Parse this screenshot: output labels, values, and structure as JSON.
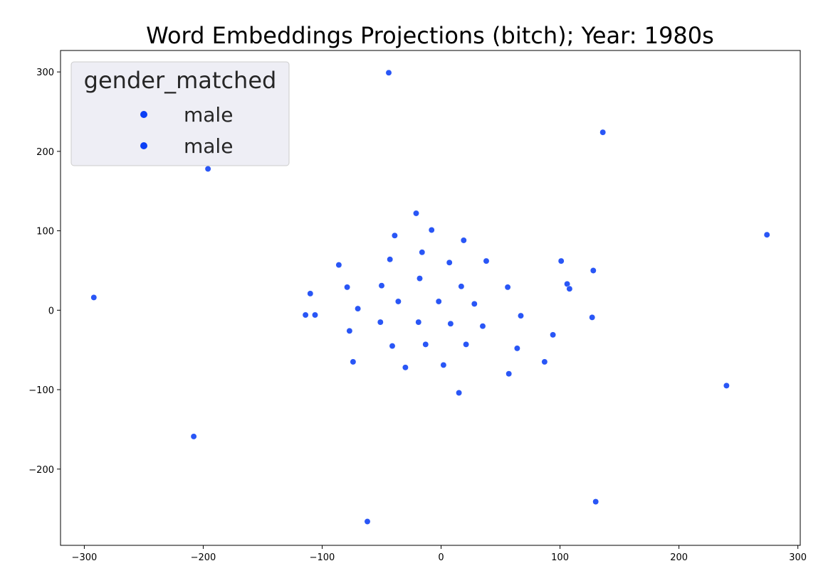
{
  "chart_data": {
    "type": "scatter",
    "title": "Word Embeddings Projections (bitch); Year: 1980s",
    "xlabel": "",
    "ylabel": "",
    "xlim": [
      -320,
      302
    ],
    "ylim": [
      -296,
      327
    ],
    "xticks": [
      -300,
      -200,
      -100,
      0,
      100,
      200,
      300
    ],
    "yticks": [
      -200,
      -100,
      0,
      100,
      200,
      300
    ],
    "xtick_labels": [
      "−300",
      "−200",
      "−100",
      "0",
      "100",
      "200",
      "300"
    ],
    "ytick_labels": [
      "−200",
      "−100",
      "0",
      "100",
      "200",
      "300"
    ],
    "grid": false,
    "legend": {
      "title": "gender_matched",
      "placement": "top-left",
      "entries": [
        {
          "label": "male",
          "color": "#0b3ff5"
        },
        {
          "label": "male",
          "color": "#0b3ff5"
        }
      ]
    },
    "series": [
      {
        "color": "#0b3ff5",
        "points": [
          [
            -44,
            299
          ],
          [
            136,
            224
          ],
          [
            -196,
            178
          ],
          [
            -21,
            122
          ],
          [
            274,
            95
          ],
          [
            -39,
            94
          ],
          [
            -8,
            101
          ],
          [
            19,
            88
          ],
          [
            -16,
            73
          ],
          [
            -43,
            64
          ],
          [
            38,
            62
          ],
          [
            101,
            62
          ],
          [
            7,
            60
          ],
          [
            -86,
            57
          ],
          [
            128,
            50
          ],
          [
            -18,
            40
          ],
          [
            106,
            33
          ],
          [
            17,
            30
          ],
          [
            -79,
            29
          ],
          [
            56,
            29
          ],
          [
            -50,
            31
          ],
          [
            108,
            27
          ],
          [
            -110,
            21
          ],
          [
            -292,
            16
          ],
          [
            -36,
            11
          ],
          [
            -2,
            11
          ],
          [
            28,
            8
          ],
          [
            -70,
            2
          ],
          [
            -114,
            -6
          ],
          [
            -106,
            -6
          ],
          [
            67,
            -7
          ],
          [
            127,
            -9
          ],
          [
            -51,
            -15
          ],
          [
            -19,
            -15
          ],
          [
            8,
            -17
          ],
          [
            35,
            -20
          ],
          [
            -77,
            -26
          ],
          [
            94,
            -31
          ],
          [
            21,
            -43
          ],
          [
            -13,
            -43
          ],
          [
            -41,
            -45
          ],
          [
            64,
            -48
          ],
          [
            -74,
            -65
          ],
          [
            87,
            -65
          ],
          [
            2,
            -69
          ],
          [
            -30,
            -72
          ],
          [
            57,
            -80
          ],
          [
            15,
            -104
          ],
          [
            240,
            -95
          ],
          [
            -208,
            -159
          ],
          [
            130,
            -241
          ],
          [
            -62,
            -266
          ]
        ]
      }
    ]
  }
}
